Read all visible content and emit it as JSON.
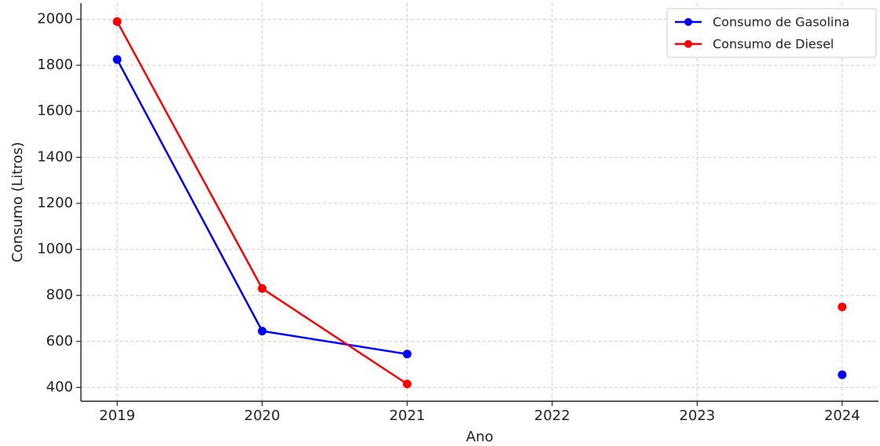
{
  "chart_data": {
    "type": "line",
    "xlabel": "Ano",
    "ylabel": "Consumo (Litros)",
    "categories": [
      "2019",
      "2020",
      "2021",
      "2022",
      "2023",
      "2024"
    ],
    "x": [
      2019,
      2020,
      2021,
      2022,
      2023,
      2024
    ],
    "xlim": [
      2018.75,
      2024.25
    ],
    "ylim": [
      340,
      2070
    ],
    "yticks": [
      400,
      600,
      800,
      1000,
      1200,
      1400,
      1600,
      1800,
      2000
    ],
    "grid": true,
    "legend_position": "top-right",
    "series": [
      {
        "name": "Consumo de Gasolina",
        "color": "#0000ff",
        "values": [
          1825,
          645,
          545,
          null,
          null,
          455
        ]
      },
      {
        "name": "Consumo de Diesel",
        "color": "#ff0000",
        "values": [
          1990,
          830,
          415,
          null,
          null,
          750
        ]
      }
    ]
  }
}
